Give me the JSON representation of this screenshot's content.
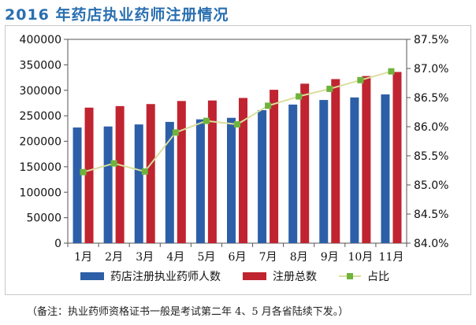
{
  "title": "2016 年药店执业药师注册情况",
  "footnote": "（备注：执业药师资格证书一般是考试第二年 4、5 月各省陆续下发。）",
  "colors": {
    "bar1": "#2d5fa8",
    "bar2": "#c02430",
    "line": "#d9df9c",
    "marker": "#6fb33d",
    "title": "#2a6fb0"
  },
  "chart_data": {
    "type": "bar",
    "categories": [
      "1月",
      "2月",
      "3月",
      "4月",
      "5月",
      "6月",
      "7月",
      "8月",
      "9月",
      "10月",
      "11月"
    ],
    "series": [
      {
        "name": "药店注册执业药师人数",
        "type": "bar",
        "axis": "left",
        "values": [
          227000,
          229000,
          233000,
          238000,
          243000,
          246000,
          261000,
          272000,
          281000,
          286000,
          292000
        ]
      },
      {
        "name": "注册总数",
        "type": "bar",
        "axis": "left",
        "values": [
          266000,
          269000,
          273000,
          279000,
          280000,
          285000,
          301000,
          313000,
          322000,
          328000,
          336000
        ]
      },
      {
        "name": "占比",
        "type": "line",
        "axis": "right",
        "values": [
          85.22,
          85.37,
          85.23,
          85.9,
          86.1,
          86.04,
          86.36,
          86.52,
          86.65,
          86.8,
          86.95
        ]
      }
    ],
    "y_left": {
      "min": 0,
      "max": 400000,
      "step": 50000,
      "tick_labels": [
        "0",
        "50000",
        "100000",
        "150000",
        "200000",
        "250000",
        "300000",
        "350000",
        "400000"
      ]
    },
    "y_right": {
      "min": 84.0,
      "max": 87.5,
      "step": 0.5,
      "tick_labels": [
        "84.0%",
        "84.5%",
        "85.0%",
        "85.5%",
        "86.0%",
        "86.5%",
        "87.0%",
        "87.5%"
      ]
    },
    "grid": false,
    "legend_position": "bottom"
  }
}
